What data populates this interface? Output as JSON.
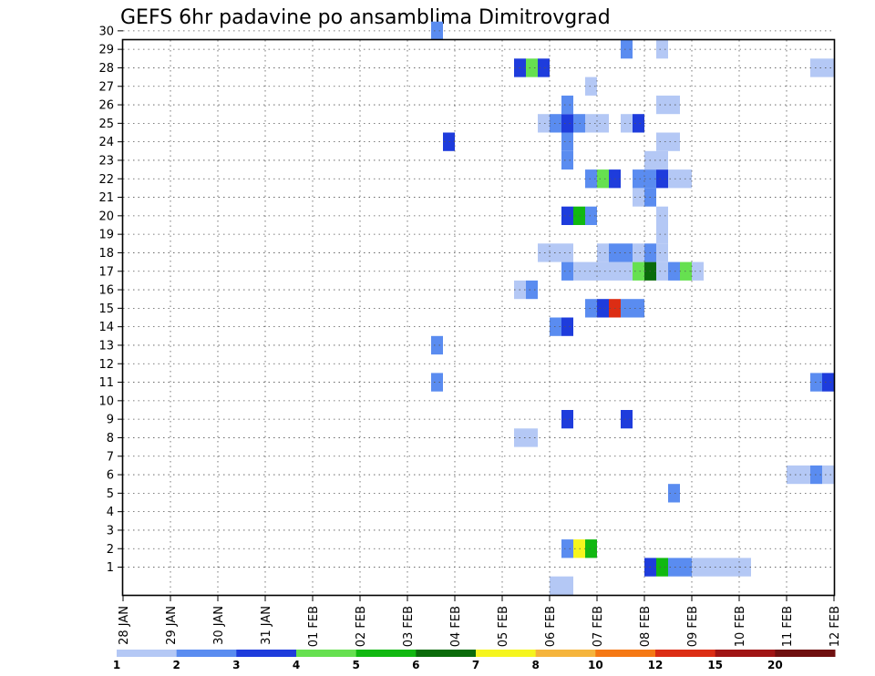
{
  "chart_data": {
    "type": "heatmap",
    "title": "GEFS 6hr padavine po ansamblima Dimitrovgrad",
    "xlabel": "",
    "ylabel": "",
    "x_ticks": [
      "28 JAN",
      "29 JAN",
      "30 JAN",
      "31 JAN",
      "01 FEB",
      "02 FEB",
      "03 FEB",
      "04 FEB",
      "05 FEB",
      "06 FEB",
      "07 FEB",
      "08 FEB",
      "09 FEB",
      "10 FEB",
      "11 FEB",
      "12 FEB"
    ],
    "y_ticks": [
      "1",
      "2",
      "3",
      "4",
      "5",
      "6",
      "7",
      "8",
      "9",
      "10",
      "11",
      "12",
      "13",
      "14",
      "15",
      "16",
      "17",
      "18",
      "19",
      "20",
      "21",
      "22",
      "23",
      "24",
      "25",
      "26",
      "27",
      "28",
      "29",
      "30"
    ],
    "x_unit": "6-hour step (4 per day, start 28 JAN 00Z)",
    "grid": true,
    "colorbar": {
      "levels": [
        "1",
        "2",
        "3",
        "4",
        "5",
        "6",
        "7",
        "8",
        "10",
        "12",
        "15",
        "20"
      ],
      "colors": [
        "#b4c8f5",
        "#5a8cf0",
        "#1e3cdc",
        "#66e050",
        "#11b811",
        "#0a6b0a",
        "#f5f51e",
        "#f5b43c",
        "#f57814",
        "#dc2d14",
        "#a01414",
        "#701010"
      ],
      "placement": "bottom"
    },
    "cells": [
      [
        36,
        0,
        1
      ],
      [
        37,
        0,
        1
      ],
      [
        44,
        1,
        3
      ],
      [
        45,
        1,
        5
      ],
      [
        46,
        1,
        2
      ],
      [
        47,
        1,
        2
      ],
      [
        48,
        1,
        1
      ],
      [
        49,
        1,
        1
      ],
      [
        50,
        1,
        1
      ],
      [
        51,
        1,
        1
      ],
      [
        52,
        1,
        1
      ],
      [
        37,
        2,
        2
      ],
      [
        38,
        2,
        7
      ],
      [
        39,
        2,
        5
      ],
      [
        73,
        2,
        2
      ],
      [
        74,
        2,
        8
      ],
      [
        75,
        2,
        1
      ],
      [
        76,
        2,
        6
      ],
      [
        77,
        2,
        6
      ],
      [
        78,
        2,
        6
      ],
      [
        79,
        2,
        3
      ],
      [
        80,
        2,
        1
      ],
      [
        93,
        3,
        2
      ],
      [
        94,
        3,
        1
      ],
      [
        88,
        4,
        1
      ],
      [
        46,
        5,
        2
      ],
      [
        89,
        5,
        2
      ],
      [
        90,
        5,
        8
      ],
      [
        91,
        5,
        3
      ],
      [
        92,
        5,
        2
      ],
      [
        104,
        5,
        2
      ],
      [
        56,
        6,
        1
      ],
      [
        57,
        6,
        1
      ],
      [
        58,
        6,
        2
      ],
      [
        59,
        6,
        1
      ],
      [
        60,
        6,
        2
      ],
      [
        61,
        6,
        3
      ],
      [
        60,
        7,
        2
      ],
      [
        61,
        7,
        3
      ],
      [
        103,
        7,
        1
      ],
      [
        33,
        8,
        1
      ],
      [
        34,
        8,
        1
      ],
      [
        78,
        8,
        4
      ],
      [
        79,
        8,
        2
      ],
      [
        80,
        8,
        2
      ],
      [
        37,
        9,
        3
      ],
      [
        42,
        9,
        3
      ],
      [
        77,
        9,
        2
      ],
      [
        78,
        9,
        6
      ],
      [
        79,
        9,
        1
      ],
      [
        81,
        9,
        3
      ],
      [
        82,
        9,
        8
      ],
      [
        83,
        9,
        4
      ],
      [
        84,
        9,
        7
      ],
      [
        85,
        9,
        2
      ],
      [
        60,
        10,
        1
      ],
      [
        61,
        10,
        1
      ],
      [
        81,
        10,
        2
      ],
      [
        82,
        10,
        2
      ],
      [
        26,
        11,
        2
      ],
      [
        58,
        11,
        2
      ],
      [
        59,
        11,
        3
      ],
      [
        60,
        11,
        1
      ],
      [
        80,
        11,
        3
      ],
      [
        81,
        11,
        2
      ],
      [
        88,
        11,
        2
      ],
      [
        89,
        11,
        1
      ],
      [
        90,
        11,
        1
      ],
      [
        75,
        12,
        5
      ],
      [
        76,
        12,
        9
      ],
      [
        77,
        12,
        2
      ],
      [
        80,
        12,
        3
      ],
      [
        81,
        12,
        2
      ],
      [
        98,
        12,
        2
      ],
      [
        99,
        12,
        6
      ],
      [
        26,
        13,
        2
      ],
      [
        74,
        13,
        1
      ],
      [
        75,
        13,
        1
      ],
      [
        76,
        13,
        2
      ],
      [
        77,
        13,
        3
      ],
      [
        36,
        14,
        2
      ],
      [
        37,
        14,
        3
      ],
      [
        63,
        14,
        1
      ],
      [
        86,
        14,
        1
      ],
      [
        39,
        15,
        2
      ],
      [
        40,
        15,
        3
      ],
      [
        41,
        15,
        10
      ],
      [
        42,
        15,
        2
      ],
      [
        43,
        15,
        2
      ],
      [
        94,
        15,
        1
      ],
      [
        33,
        16,
        1
      ],
      [
        34,
        16,
        2
      ],
      [
        104,
        16,
        2
      ],
      [
        37,
        17,
        2
      ],
      [
        38,
        17,
        1
      ],
      [
        39,
        17,
        1
      ],
      [
        40,
        17,
        1
      ],
      [
        41,
        17,
        1
      ],
      [
        42,
        17,
        1
      ],
      [
        43,
        17,
        4
      ],
      [
        44,
        17,
        6
      ],
      [
        45,
        17,
        1
      ],
      [
        46,
        17,
        2
      ],
      [
        47,
        17,
        4
      ],
      [
        48,
        17,
        1
      ],
      [
        35,
        18,
        1
      ],
      [
        36,
        18,
        1
      ],
      [
        37,
        18,
        1
      ],
      [
        40,
        18,
        1
      ],
      [
        41,
        18,
        2
      ],
      [
        42,
        18,
        2
      ],
      [
        43,
        18,
        1
      ],
      [
        44,
        18,
        2
      ],
      [
        45,
        18,
        1
      ],
      [
        45,
        19,
        1
      ],
      [
        37,
        20,
        3
      ],
      [
        38,
        20,
        5
      ],
      [
        39,
        20,
        2
      ],
      [
        45,
        20,
        1
      ],
      [
        43,
        21,
        1
      ],
      [
        44,
        21,
        2
      ],
      [
        88,
        21,
        2
      ],
      [
        89,
        21,
        1
      ],
      [
        99,
        21,
        6
      ],
      [
        39,
        22,
        2
      ],
      [
        40,
        22,
        4
      ],
      [
        41,
        22,
        3
      ],
      [
        43,
        22,
        2
      ],
      [
        44,
        22,
        2
      ],
      [
        45,
        22,
        3
      ],
      [
        46,
        22,
        1
      ],
      [
        47,
        22,
        1
      ],
      [
        80,
        22,
        1
      ],
      [
        37,
        23,
        2
      ],
      [
        44,
        23,
        1
      ],
      [
        45,
        23,
        1
      ],
      [
        83,
        23,
        1
      ],
      [
        100,
        23,
        3
      ],
      [
        27,
        24,
        3
      ],
      [
        37,
        24,
        2
      ],
      [
        45,
        24,
        1
      ],
      [
        46,
        24,
        1
      ],
      [
        35,
        25,
        1
      ],
      [
        36,
        25,
        2
      ],
      [
        37,
        25,
        3
      ],
      [
        38,
        25,
        2
      ],
      [
        39,
        25,
        1
      ],
      [
        40,
        25,
        1
      ],
      [
        42,
        25,
        1
      ],
      [
        43,
        25,
        3
      ],
      [
        98,
        25,
        1
      ],
      [
        103,
        25,
        1
      ],
      [
        104,
        25,
        1
      ],
      [
        37,
        26,
        2
      ],
      [
        45,
        26,
        1
      ],
      [
        46,
        26,
        1
      ],
      [
        39,
        27,
        1
      ],
      [
        33,
        28,
        3
      ],
      [
        34,
        28,
        4
      ],
      [
        35,
        28,
        3
      ],
      [
        58,
        28,
        1
      ],
      [
        59,
        28,
        1
      ],
      [
        79,
        28,
        1
      ],
      [
        87,
        28,
        4
      ],
      [
        42,
        29,
        2
      ],
      [
        45,
        29,
        1
      ],
      [
        26,
        30,
        2
      ],
      [
        79,
        31,
        1
      ],
      [
        82,
        31,
        1
      ],
      [
        96,
        31,
        8
      ],
      [
        73,
        32,
        1
      ],
      [
        74,
        32,
        3
      ],
      [
        75,
        32,
        1
      ]
    ]
  }
}
